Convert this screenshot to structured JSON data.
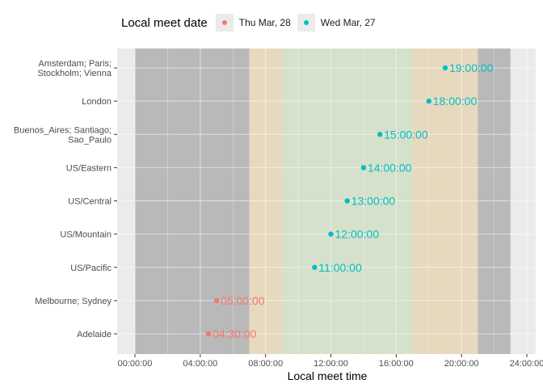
{
  "legend": {
    "title": "Local meet date",
    "items": [
      {
        "label": "Thu Mar, 28",
        "color": "#F8766D"
      },
      {
        "label": "Wed Mar, 27",
        "color": "#00BFC4"
      }
    ]
  },
  "chart_data": {
    "type": "scatter",
    "xlabel": "Local meet time",
    "ylabel": "",
    "xlim": [
      "00:00:00",
      "24:00:00"
    ],
    "x_ticks": [
      "00:00:00",
      "04:00:00",
      "08:00:00",
      "12:00:00",
      "16:00:00",
      "20:00:00",
      "24:00:00"
    ],
    "legend_position": "top",
    "bands": [
      {
        "from": "00:00:00",
        "to": "07:00:00",
        "color": "#b9b9b9"
      },
      {
        "from": "07:00:00",
        "to": "09:00:00",
        "color": "#e6d9bd"
      },
      {
        "from": "09:00:00",
        "to": "17:00:00",
        "color": "#d6e1cb"
      },
      {
        "from": "17:00:00",
        "to": "21:00:00",
        "color": "#e6d9bd"
      },
      {
        "from": "21:00:00",
        "to": "23:00:00",
        "color": "#b9b9b9"
      }
    ],
    "reference_line": "12:00:00",
    "categories": [
      "Amsterdam; Paris;\nStockholm; Vienna",
      "London",
      "Buenos_Aires; Santiago;\nSao_Paulo",
      "US/Eastern",
      "US/Central",
      "US/Mountain",
      "US/Pacific",
      "Melbourne; Sydney",
      "Adelaide"
    ],
    "points": [
      {
        "category": "Amsterdam; Paris;\nStockholm; Vienna",
        "time": "19:00:00",
        "date": "Wed Mar, 27"
      },
      {
        "category": "London",
        "time": "18:00:00",
        "date": "Wed Mar, 27"
      },
      {
        "category": "Buenos_Aires; Santiago;\nSao_Paulo",
        "time": "15:00:00",
        "date": "Wed Mar, 27"
      },
      {
        "category": "US/Eastern",
        "time": "14:00:00",
        "date": "Wed Mar, 27"
      },
      {
        "category": "US/Central",
        "time": "13:00:00",
        "date": "Wed Mar, 27"
      },
      {
        "category": "US/Mountain",
        "time": "12:00:00",
        "date": "Wed Mar, 27"
      },
      {
        "category": "US/Pacific",
        "time": "11:00:00",
        "date": "Wed Mar, 27"
      },
      {
        "category": "Melbourne; Sydney",
        "time": "05:00:00",
        "date": "Thu Mar, 28"
      },
      {
        "category": "Adelaide",
        "time": "04:30:00",
        "date": "Thu Mar, 28"
      }
    ]
  }
}
